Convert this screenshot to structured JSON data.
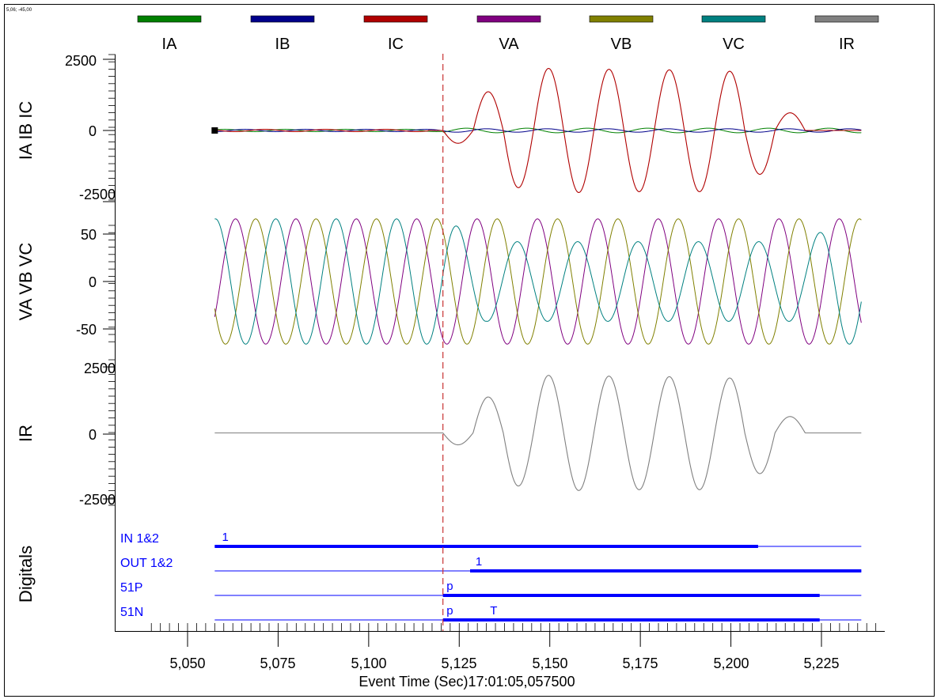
{
  "corner_readout": "5,06; -45,00",
  "legend": [
    {
      "name": "IA",
      "color": "#008000"
    },
    {
      "name": "IB",
      "color": "#00008b"
    },
    {
      "name": "IC",
      "color": "#b00000"
    },
    {
      "name": "VA",
      "color": "#800080"
    },
    {
      "name": "VB",
      "color": "#808000"
    },
    {
      "name": "VC",
      "color": "#008080"
    },
    {
      "name": "IR",
      "color": "#808080"
    }
  ],
  "chart_data": {
    "type": "line",
    "xlabel": "Event Time (Sec)17:01:05,057500",
    "x_ticks": [
      "5,050",
      "5,075",
      "5,100",
      "5,125",
      "5,150",
      "5,175",
      "5,200",
      "5,225"
    ],
    "x_tick_values": [
      5.05,
      5.075,
      5.1,
      5.125,
      5.15,
      5.175,
      5.2,
      5.225
    ],
    "xlim": [
      5.0325,
      5.2375
    ],
    "record_start": 5.0575,
    "record_end": 5.236,
    "cursor_time": 5.1205,
    "frequency_hz": 60,
    "panels": [
      {
        "ylabel": "IA IB IC",
        "ylim": [
          -2700,
          2500
        ],
        "y_ticks": [
          "2500",
          "0",
          "-2500"
        ],
        "y_tick_values": [
          2500,
          0,
          -2500
        ],
        "series": [
          {
            "name": "IA",
            "prefault_amplitude": 40,
            "fault_amplitude": 80
          },
          {
            "name": "IB",
            "prefault_amplitude": 40,
            "fault_amplitude": 60
          },
          {
            "name": "IC",
            "prefault_amplitude": 40,
            "fault_peaks": [
              -450,
              1360,
              -2010,
              2180,
              -2180,
              2150,
              -2150,
              2130,
              -2150,
              2080,
              -1540,
              620
            ]
          }
        ]
      },
      {
        "ylabel": "VA VB VC",
        "ylim": [
          -68,
          68
        ],
        "y_ticks": [
          "50",
          "0",
          "-50"
        ],
        "y_tick_values": [
          50,
          0,
          -50
        ],
        "series": [
          {
            "name": "VA",
            "amplitude": 66
          },
          {
            "name": "VB",
            "amplitude": 66
          },
          {
            "name": "VC",
            "prefault_amplitude": 66,
            "fault_amplitude": 42
          }
        ]
      },
      {
        "ylabel": "IR",
        "ylim": [
          -2600,
          2600
        ],
        "y_ticks": [
          "2500",
          "0",
          "-2500"
        ],
        "y_tick_values": [
          2500,
          0,
          -2500
        ],
        "series": [
          {
            "name": "IR",
            "fault_peaks": [
              -450,
              1360,
              -2010,
              2180,
              -2180,
              2150,
              -2150,
              2130,
              -2150,
              2080,
              -1540,
              620
            ]
          }
        ]
      }
    ],
    "digitals": {
      "ylabel": "Digitals",
      "channels": [
        {
          "name": "IN 1&2",
          "active_from": 5.0575,
          "active_to": 5.2075,
          "mark": "1",
          "mark_at": 5.0595
        },
        {
          "name": "OUT 1&2",
          "active_from": 5.128,
          "active_to": 5.236,
          "mark": "1",
          "mark_at": 5.1295
        },
        {
          "name": "51P",
          "active_from": 5.1205,
          "active_to": 5.2245,
          "mark": "p",
          "mark_at": 5.1215
        },
        {
          "name": "51N",
          "active_from": 5.1205,
          "active_to": 5.2245,
          "mark": "p",
          "mark_at": 5.1215,
          "mark2": "T",
          "mark2_at": 5.1335
        }
      ]
    }
  }
}
